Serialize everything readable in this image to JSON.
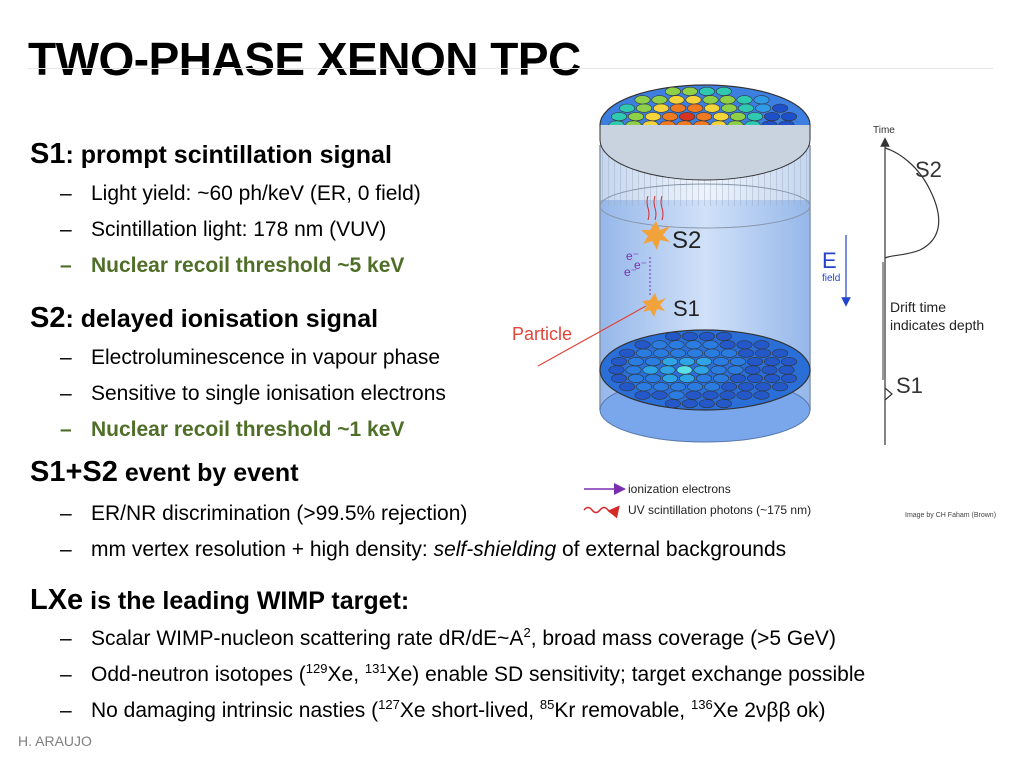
{
  "slide": {
    "title": "TWO-PHASE XENON TPC",
    "footer": "H. ARAUJO"
  },
  "sections": {
    "s1": {
      "head_big": "S1",
      "head_rest": ": prompt scintillation signal",
      "b1": "Light yield: ~60 ph/keV (ER, 0 field)",
      "b2": "Scintillation light: 178 nm (VUV)",
      "b3": "Nuclear recoil threshold ~5 keV"
    },
    "s2": {
      "head_big": "S2",
      "head_rest": ": delayed ionisation signal",
      "b1": "Electroluminescence in vapour phase",
      "b2": "Sensitive to single ionisation electrons",
      "b3": "Nuclear recoil threshold ~1 keV"
    },
    "s12": {
      "head_big": "S1+S2",
      "head_rest": " event by event",
      "b1": "ER/NR discrimination (>99.5% rejection)",
      "b2_pre": "mm vertex resolution + high density: ",
      "b2_em": "self-shielding",
      "b2_post": " of external backgrounds"
    },
    "lxe": {
      "head_big": "LXe",
      "head_rest": " is the leading WIMP target:",
      "b1_pre": "Scalar WIMP-nucleon scattering rate dR/dE~A",
      "b1_sup": "2",
      "b1_post": ", broad mass coverage (>5 GeV)",
      "b2_a": "Odd-neutron isotopes (",
      "b2_sup1": "129",
      "b2_b": "Xe, ",
      "b2_sup2": "131",
      "b2_c": "Xe) enable SD sensitivity; target exchange possible",
      "b3_a": "No damaging intrinsic nasties (",
      "b3_sup1": "127",
      "b3_b": "Xe short-lived, ",
      "b3_sup2": "85",
      "b3_c": "Kr removable, ",
      "b3_sup3": "136",
      "b3_d": "Xe 2νββ ok)"
    }
  },
  "figure": {
    "label_s2": "S2",
    "label_s1": "S1",
    "label_particle": "Particle",
    "label_e": "E",
    "label_field": "field",
    "label_electrons": "e⁻",
    "label_time": "Time",
    "label_signal_s2": "S2",
    "label_signal_s1": "S1",
    "label_drift1": "Drift time",
    "label_drift2": "indicates depth",
    "legend_ionization": "ionization electrons",
    "legend_uv": "UV scintillation photons (~175 nm)",
    "credit": "Image by CH Faham (Brown)",
    "colors": {
      "particle": "#e0443a",
      "arrow_blue": "#2244cc",
      "ionization": "#7b2fb0",
      "uv": "#d42a2a"
    }
  }
}
